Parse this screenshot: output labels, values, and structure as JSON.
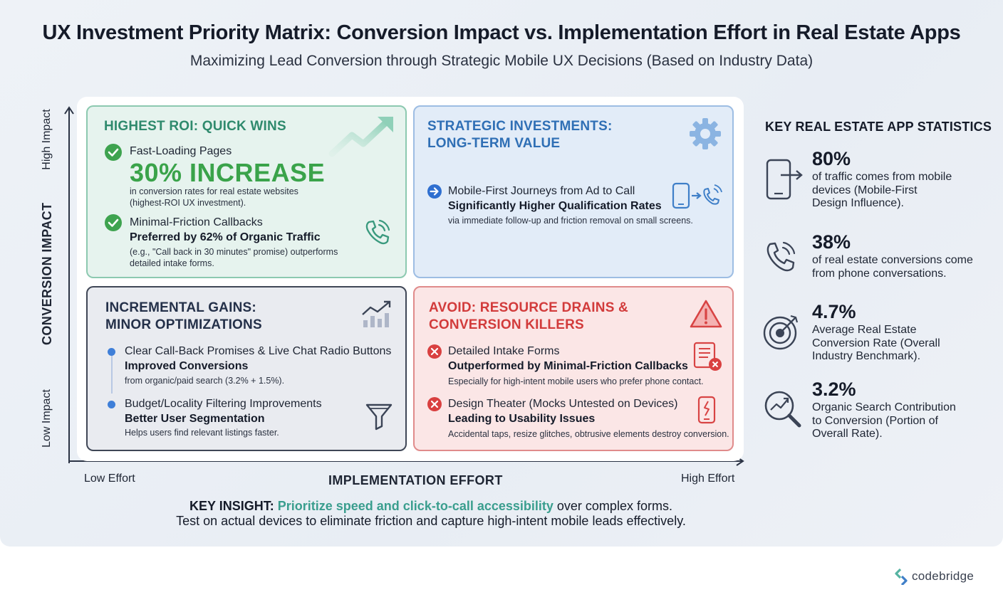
{
  "title": "UX Investment Priority Matrix: Conversion Impact vs. Implementation Effort in Real Estate Apps",
  "subtitle": "Maximizing Lead Conversion through Strategic Mobile UX Decisions (Based on Industry Data)",
  "axes": {
    "y_title": "CONVERSION IMPACT",
    "y_high": "High Impact",
    "y_low": "Low Impact",
    "x_title": "IMPLEMENTATION EFFORT",
    "x_low": "Low Effort",
    "x_high": "High Effort"
  },
  "quadrants": {
    "quick_wins": {
      "heading_line1": "HIGHEST ROI: QUICK WINS",
      "item1_label": "Fast-Loading Pages",
      "item1_big": "30% INCREASE",
      "item1_desc1": "in conversion rates for real estate websites",
      "item1_desc2": "(highest-ROI UX investment).",
      "item2_label": "Minimal-Friction Callbacks",
      "item2_strong": "Preferred by 62% of Organic Traffic",
      "item2_desc1": "(e.g., \"Call back in 30 minutes\" promise) outperforms",
      "item2_desc2": "detailed intake forms.",
      "color": "#2f8a6d"
    },
    "strategic": {
      "heading_line1": "STRATEGIC INVESTMENTS:",
      "heading_line2": "LONG-TERM VALUE",
      "item1_label": "Mobile-First Journeys from Ad to Call",
      "item1_strong": "Significantly Higher Qualification Rates",
      "item1_desc": "via immediate follow-up and friction removal on small screens.",
      "color": "#2f6fb5"
    },
    "incremental": {
      "heading_line1": "INCREMENTAL GAINS:",
      "heading_line2": "MINOR OPTIMIZATIONS",
      "item1_label": "Clear Call-Back Promises & Live Chat Radio Buttons",
      "item1_strong": "Improved Conversions",
      "item1_desc": "from organic/paid search (3.2% + 1.5%).",
      "item2_label": "Budget/Locality Filtering Improvements",
      "item2_strong": "Better User Segmentation",
      "item2_desc": "Helps users find relevant listings faster.",
      "color": "#243049"
    },
    "avoid": {
      "heading_line1": "AVOID: RESOURCE DRAINS &",
      "heading_line2": "CONVERSION KILLERS",
      "item1_label": "Detailed Intake Forms",
      "item1_strong": "Outperformed by Minimal-Friction Callbacks",
      "item1_desc": "Especially for high-intent mobile users who prefer phone contact.",
      "item2_label": "Design Theater (Mocks Untested on Devices)",
      "item2_strong": "Leading to Usability Issues",
      "item2_desc": "Accidental taps, resize glitches, obtrusive elements destroy conversion.",
      "color": "#d23b3b"
    }
  },
  "stats": {
    "heading": "KEY REAL ESTATE APP STATISTICS",
    "items": [
      {
        "value": "80%",
        "l1": "of traffic comes from mobile",
        "l2": "devices (Mobile-First",
        "l3": "Design Influence).",
        "icon": "mobile-icon"
      },
      {
        "value": "38%",
        "l1": "of real estate conversions come",
        "l2": "from phone conversations.",
        "l3": "",
        "icon": "phone-icon"
      },
      {
        "value": "4.7%",
        "l1": "Average Real Estate",
        "l2": "Conversion Rate (Overall",
        "l3": "Industry Benchmark).",
        "icon": "target-icon"
      },
      {
        "value": "3.2%",
        "l1": "Organic Search Contribution",
        "l2": "to Conversion (Portion of",
        "l3": "Overall Rate).",
        "icon": "search-chart-icon"
      }
    ]
  },
  "insight": {
    "key": "KEY INSIGHT:",
    "highlight": "Prioritize speed and click-to-call accessibility",
    "rest": " over complex forms.",
    "line2": "Test on actual devices to eliminate friction and capture high-intent mobile leads effectively."
  },
  "brand": "codebridge"
}
